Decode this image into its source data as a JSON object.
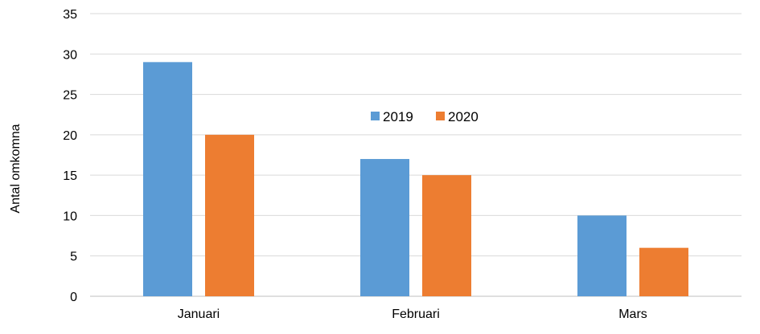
{
  "chart_data": {
    "type": "bar",
    "categories": [
      "Januari",
      "Februari",
      "Mars"
    ],
    "series": [
      {
        "name": "2019",
        "values": [
          29,
          17,
          10
        ],
        "color": "#5b9bd5"
      },
      {
        "name": "2020",
        "values": [
          20,
          15,
          6
        ],
        "color": "#ed7d31"
      }
    ],
    "ylabel": "Antal omkomna",
    "ylim": [
      0,
      35
    ],
    "yticks": [
      0,
      5,
      10,
      15,
      20,
      25,
      30,
      35
    ],
    "grid": true,
    "legend": "top-center",
    "gridline_color": "#d9d9d9"
  }
}
